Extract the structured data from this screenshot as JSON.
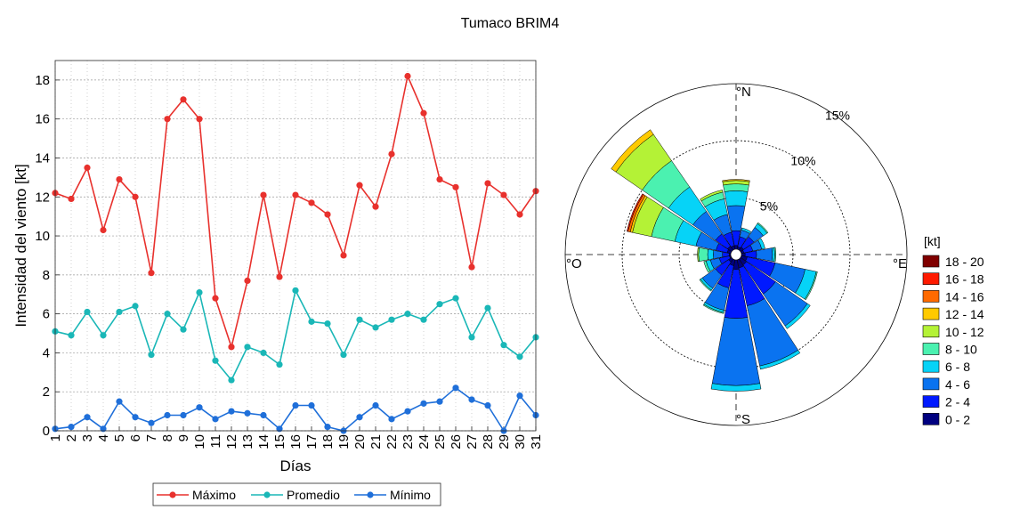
{
  "figure": {
    "title": "Tumaco BRIM4"
  },
  "chart_data": [
    {
      "type": "line",
      "xlabel": "Días",
      "ylabel": "Intensidad del viento [kt]",
      "x": [
        1,
        2,
        3,
        4,
        5,
        6,
        7,
        8,
        9,
        10,
        11,
        12,
        13,
        14,
        15,
        16,
        17,
        18,
        19,
        20,
        21,
        22,
        23,
        24,
        25,
        26,
        27,
        28,
        29,
        30,
        31
      ],
      "xlim": [
        1,
        31
      ],
      "ylim": [
        0,
        19
      ],
      "yticks": [
        0,
        2,
        4,
        6,
        8,
        10,
        12,
        14,
        16,
        18
      ],
      "grid": true,
      "legend_position": "bottom",
      "series": [
        {
          "name": "Máximo",
          "color": "#e8312d",
          "values": [
            12.2,
            11.9,
            13.5,
            10.3,
            12.9,
            12.0,
            8.1,
            16.0,
            17.0,
            16.0,
            6.8,
            4.3,
            7.7,
            12.1,
            7.9,
            12.1,
            11.7,
            11.1,
            9.0,
            12.6,
            11.5,
            14.2,
            18.2,
            16.3,
            12.9,
            12.5,
            8.4,
            12.7,
            12.1,
            11.1,
            12.3
          ]
        },
        {
          "name": "Promedio",
          "color": "#1ab7b7",
          "values": [
            5.1,
            4.9,
            6.1,
            4.9,
            6.1,
            6.4,
            3.9,
            6.0,
            5.2,
            7.1,
            3.6,
            2.6,
            4.3,
            4.0,
            3.4,
            7.2,
            5.6,
            5.5,
            3.9,
            5.7,
            5.3,
            5.7,
            6.0,
            5.7,
            6.5,
            6.8,
            4.8,
            6.3,
            4.4,
            3.8,
            4.8
          ]
        },
        {
          "name": "Mínimo",
          "color": "#1f6fd9",
          "values": [
            0.1,
            0.2,
            0.7,
            0.1,
            1.5,
            0.7,
            0.4,
            0.8,
            0.8,
            1.2,
            0.6,
            1.0,
            0.9,
            0.8,
            0.1,
            1.3,
            1.3,
            0.2,
            0.0,
            0.7,
            1.3,
            0.6,
            1.0,
            1.4,
            1.5,
            2.2,
            1.6,
            1.3,
            0.0,
            1.8,
            0.8
          ]
        }
      ]
    },
    {
      "type": "windrose",
      "radial_max": 15,
      "radial_ticks": [
        5,
        10,
        15
      ],
      "radial_tick_labels": [
        "5%",
        "10%",
        "15%"
      ],
      "direction_labels": {
        "N": "°N",
        "E": "°E",
        "S": "°S",
        "W": "°O"
      },
      "legend_title": "[kt]",
      "speed_bins": [
        "0 - 2",
        "2 - 4",
        "4 - 6",
        "6 - 8",
        "8 - 10",
        "10 - 12",
        "12 - 14",
        "14 - 16",
        "16 - 18",
        "18 - 20"
      ],
      "speed_colors": [
        "#000080",
        "#0019ff",
        "#0a73f0",
        "#06d3f7",
        "#4bf1b0",
        "#b4f236",
        "#ffca00",
        "#ff6a00",
        "#ff1a00",
        "#800000"
      ],
      "direction_centers": [
        0,
        22.5,
        45,
        67.5,
        90,
        112.5,
        135,
        157.5,
        180,
        202.5,
        225,
        247.5,
        270,
        292.5,
        315,
        337.5
      ],
      "cumulative_percent": [
        [
          0.8,
          2.1,
          4.3,
          5.6,
          6.2,
          6.5,
          6.6,
          6.6,
          6.6,
          6.6
        ],
        [
          0.7,
          1.6,
          2.2,
          2.4,
          2.4,
          2.4,
          2.4,
          2.4,
          2.4,
          2.4
        ],
        [
          0.8,
          1.9,
          2.9,
          3.3,
          3.4,
          3.4,
          3.4,
          3.4,
          3.4,
          3.4
        ],
        [
          0.7,
          1.5,
          2.3,
          2.6,
          2.6,
          2.6,
          2.6,
          2.6,
          2.6,
          2.6
        ],
        [
          0.8,
          1.8,
          3.2,
          3.4,
          3.5,
          3.5,
          3.5,
          3.5,
          3.5,
          3.5
        ],
        [
          1.0,
          3.5,
          6.2,
          7.2,
          7.3,
          7.3,
          7.3,
          7.3,
          7.3,
          7.3
        ],
        [
          1.1,
          4.2,
          7.6,
          7.9,
          7.9,
          7.9,
          7.9,
          7.9,
          7.9,
          7.9
        ],
        [
          1.2,
          4.6,
          10.0,
          10.3,
          10.3,
          10.3,
          10.3,
          10.3,
          10.3,
          10.3
        ],
        [
          1.3,
          5.6,
          11.5,
          12.0,
          12.0,
          12.0,
          12.0,
          12.0,
          12.0,
          12.0
        ],
        [
          1.0,
          3.0,
          5.0,
          5.2,
          5.3,
          5.3,
          5.3,
          5.3,
          5.3,
          5.3
        ],
        [
          0.8,
          2.2,
          3.6,
          3.8,
          3.9,
          3.9,
          3.9,
          3.9,
          3.9,
          3.9
        ],
        [
          0.6,
          1.5,
          2.3,
          2.7,
          2.9,
          2.9,
          2.9,
          2.9,
          2.9,
          2.9
        ],
        [
          0.6,
          1.2,
          2.0,
          2.5,
          3.3,
          3.4,
          3.4,
          3.4,
          3.4,
          3.4
        ],
        [
          0.8,
          1.8,
          3.6,
          5.5,
          7.6,
          9.3,
          9.5,
          9.7,
          9.8,
          9.8
        ],
        [
          0.9,
          2.2,
          4.6,
          7.2,
          10.0,
          12.8,
          13.3,
          13.3,
          13.3,
          13.3
        ],
        [
          0.8,
          2.0,
          3.6,
          5.0,
          5.6,
          5.8,
          5.8,
          5.8,
          5.8,
          5.8
        ]
      ]
    }
  ]
}
